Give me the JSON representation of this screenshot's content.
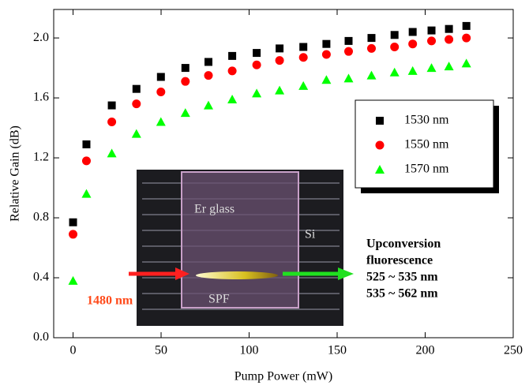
{
  "chart_data": {
    "type": "scatter",
    "x_label": "Pump Power (mW)",
    "y_label": "Relative Gain (dB)",
    "xlim": [
      -11,
      250
    ],
    "ylim": [
      0,
      2.19
    ],
    "xticks": [
      0,
      50,
      100,
      150,
      200,
      250
    ],
    "yticks": [
      {
        "value": 0,
        "label": "0.0"
      },
      0.4,
      0.8,
      1.2,
      1.6,
      {
        "value": 2,
        "label": "2.0"
      }
    ],
    "x": [
      0,
      7.6,
      22,
      36,
      49.9,
      63.8,
      76.9,
      90.4,
      104.3,
      117.3,
      130.8,
      143.9,
      156.5,
      169.5,
      182.6,
      192.9,
      203.6,
      213.5,
      223.4
    ],
    "series": [
      {
        "name": "1530 nm",
        "color": "#000000",
        "marker": "square",
        "values": [
          0.77,
          1.29,
          1.55,
          1.66,
          1.74,
          1.8,
          1.84,
          1.88,
          1.9,
          1.93,
          1.94,
          1.96,
          1.98,
          2.0,
          2.02,
          2.04,
          2.05,
          2.06,
          2.08
        ]
      },
      {
        "name": "1550 nm",
        "color": "#ff0000",
        "marker": "circle",
        "values": [
          0.69,
          1.18,
          1.44,
          1.56,
          1.64,
          1.71,
          1.75,
          1.78,
          1.82,
          1.85,
          1.87,
          1.89,
          1.91,
          1.93,
          1.94,
          1.96,
          1.98,
          1.99,
          2.0
        ]
      },
      {
        "name": "1570 nm",
        "color": "#00ff00",
        "marker": "triangle",
        "values": [
          0.38,
          0.96,
          1.23,
          1.36,
          1.44,
          1.5,
          1.55,
          1.59,
          1.63,
          1.65,
          1.68,
          1.72,
          1.73,
          1.75,
          1.77,
          1.78,
          1.8,
          1.81,
          1.83
        ]
      }
    ],
    "inset_labels": [
      "Er glass",
      "Si",
      "SPF",
      "1480 nm"
    ],
    "callout_lines": [
      "Upconversion",
      "fluorescence",
      "525 ~ 535 nm",
      "535 ~ 562 nm"
    ]
  }
}
